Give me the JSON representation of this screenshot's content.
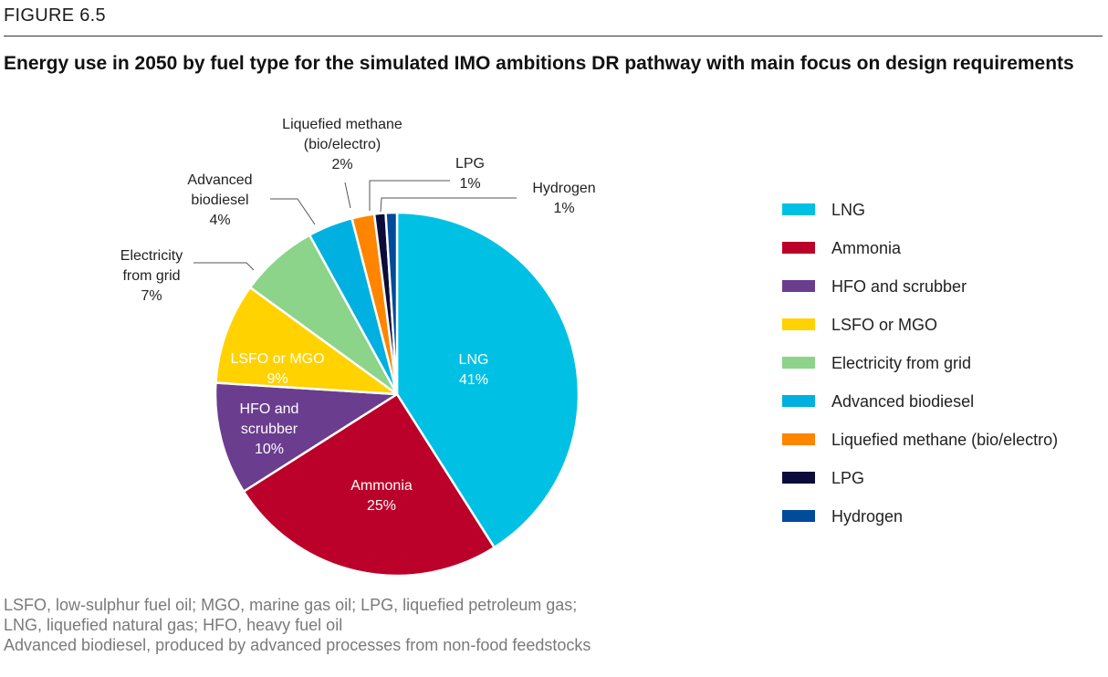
{
  "figure_label": "FIGURE 6.5",
  "chart_data": {
    "type": "pie",
    "title": "Energy use in 2050 by fuel type for the simulated IMO ambitions DR pathway with main focus on design requirements",
    "slices": [
      {
        "name": "LNG",
        "value": 41,
        "color": "#00c1e4",
        "label_lines": [
          "LNG",
          "41%"
        ],
        "label_inside": true,
        "label_color": "#ffffff"
      },
      {
        "name": "Ammonia",
        "value": 25,
        "color": "#bb0029",
        "label_lines": [
          "Ammonia",
          "25%"
        ],
        "label_inside": true,
        "label_color": "#ffffff"
      },
      {
        "name": "HFO and scrubber",
        "value": 10,
        "color": "#6a3d8f",
        "label_lines": [
          "HFO and",
          "scrubber",
          "10%"
        ],
        "label_inside": true,
        "label_color": "#ffffff"
      },
      {
        "name": "LSFO or MGO",
        "value": 9,
        "color": "#ffd200",
        "label_lines": [
          "LSFO or MGO",
          "9%"
        ],
        "label_inside": true,
        "label_color": "#ffffff"
      },
      {
        "name": "Electricity from grid",
        "value": 7,
        "color": "#8bd48a",
        "label_lines": [
          "Electricity",
          "from grid",
          "7%"
        ],
        "label_inside": false,
        "label_color": "#222222"
      },
      {
        "name": "Advanced biodiesel",
        "value": 4,
        "color": "#00b0e0",
        "label_lines": [
          "Advanced",
          "biodiesel",
          "4%"
        ],
        "label_inside": false,
        "label_color": "#222222"
      },
      {
        "name": "Liquefied methane (bio/electro)",
        "value": 2,
        "color": "#ff8500",
        "label_lines": [
          "Liquefied methane",
          "(bio/electro)",
          "2%"
        ],
        "label_inside": false,
        "label_color": "#222222"
      },
      {
        "name": "LPG",
        "value": 1,
        "color": "#0b0c3a",
        "label_lines": [
          "LPG",
          "1%"
        ],
        "label_inside": false,
        "label_color": "#222222"
      },
      {
        "name": "Hydrogen",
        "value": 1,
        "color": "#004b9a",
        "label_lines": [
          "Hydrogen",
          "1%"
        ],
        "label_inside": false,
        "label_color": "#222222"
      }
    ],
    "legend": [
      "LNG",
      "Ammonia",
      "HFO and scrubber",
      "LSFO or MGO",
      "Electricity from grid",
      "Advanced biodiesel",
      "Liquefied methane (bio/electro)",
      "LPG",
      "Hydrogen"
    ],
    "legend_position": "right"
  },
  "notes": [
    "LSFO, low-sulphur fuel oil; MGO, marine gas oil; LPG, liquefied petroleum gas;",
    "LNG, liquefied natural gas; HFO, heavy fuel oil",
    "Advanced biodiesel, produced by advanced processes from non-food feedstocks"
  ]
}
